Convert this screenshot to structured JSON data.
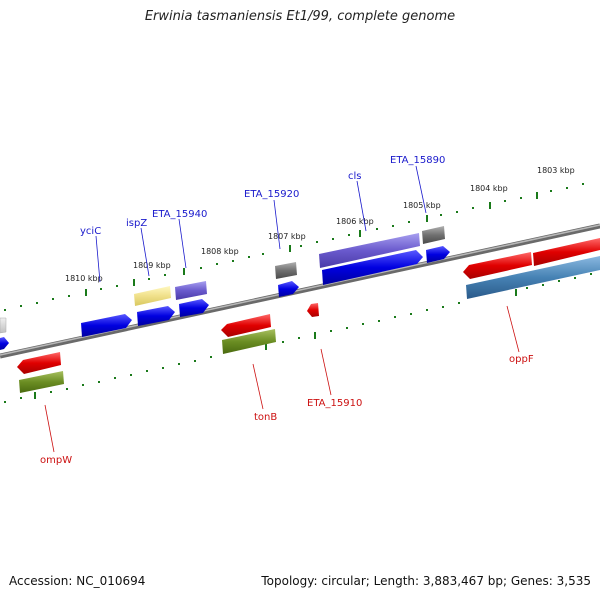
{
  "title": "Erwinia tasmaniensis Et1/99, complete genome",
  "footer": {
    "accession": "Accession: NC_010694",
    "topology": "Topology: circular; Length: 3,883,467 bp; Genes: 3,535"
  },
  "colors": {
    "forward_label": "#1a1acc",
    "reverse_label": "#cc1111",
    "tick": "#1a7a1a",
    "backbone": "#8a8a8a"
  },
  "kbp_ticks": [
    "1803 kbp",
    "1804 kbp",
    "1805 kbp",
    "1806 kbp",
    "1807 kbp",
    "1808 kbp",
    "1809 kbp",
    "1810 kbp"
  ],
  "forward_labels": [
    "yciC",
    "ispZ",
    "ETA_15940",
    "ETA_15920",
    "cls",
    "ETA_15890"
  ],
  "reverse_labels": [
    "ompW",
    "tonB",
    "ETA_15910",
    "oppF"
  ]
}
